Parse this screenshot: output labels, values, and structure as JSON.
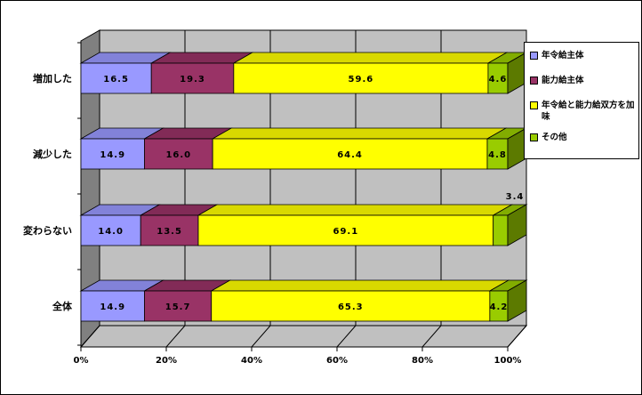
{
  "chart_data": {
    "type": "bar",
    "orientation": "horizontal",
    "stacked": "percent",
    "three_d": true,
    "categories": [
      "増加した",
      "減少した",
      "変わらない",
      "全体"
    ],
    "series": [
      {
        "name": "年令給主体",
        "color": "#9999FF",
        "values": [
          16.5,
          14.9,
          14.0,
          14.9
        ]
      },
      {
        "name": "能力給主体",
        "color": "#993366",
        "values": [
          19.3,
          16.0,
          13.5,
          15.7
        ]
      },
      {
        "name": "年令給と能力給双方を加味",
        "color": "#FFFF00",
        "values": [
          59.6,
          64.4,
          69.1,
          65.3
        ]
      },
      {
        "name": "その他",
        "color": "#99CC00",
        "values": [
          4.6,
          4.8,
          3.4,
          4.2
        ]
      }
    ],
    "xticks": [
      "0%",
      "20%",
      "40%",
      "60%",
      "80%",
      "100%"
    ],
    "xlim": [
      0,
      100
    ],
    "grid": true,
    "legend_position": "right"
  }
}
